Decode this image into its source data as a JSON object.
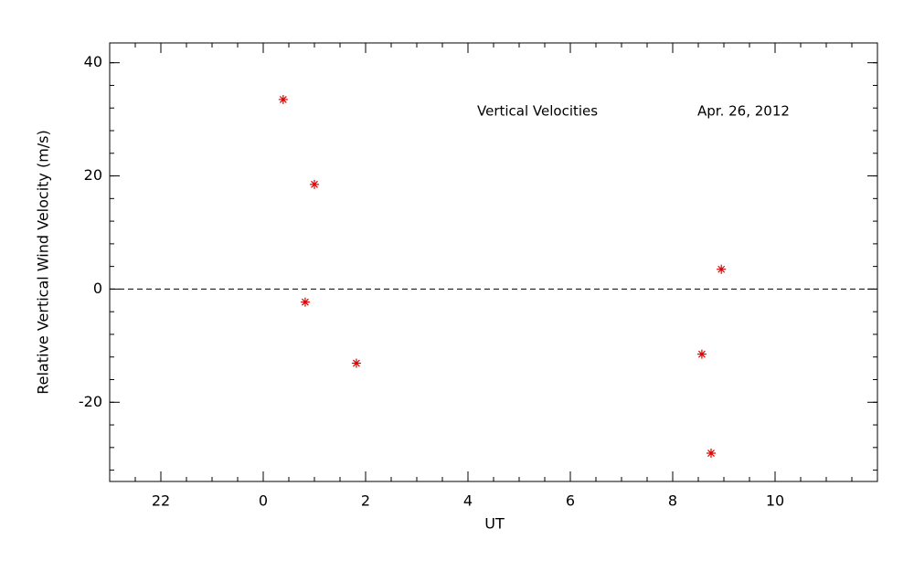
{
  "chart_data": {
    "type": "scatter",
    "x_label": "UT",
    "y_label": "Relative Vertical Wind Velocity (m/s)",
    "annotations": [
      "Vertical Velocities",
      "Apr. 26, 2012"
    ],
    "series": [
      {
        "color": "#dd0000",
        "marker": "asterisk",
        "x": [
          0.39,
          1.0,
          0.82,
          1.82,
          8.95,
          8.57,
          8.75
        ],
        "values": [
          33.5,
          18.5,
          -2.3,
          -13.1,
          3.5,
          -11.5,
          -29.0
        ]
      }
    ],
    "xlim": [
      -3,
      12
    ],
    "xticks": [
      {
        "value": -2,
        "label": "22"
      },
      0,
      2,
      4,
      6,
      8,
      10
    ],
    "ylim": [
      -34,
      43.5
    ],
    "yticks": [
      -20,
      0,
      20,
      40
    ],
    "reference_line": 0
  }
}
